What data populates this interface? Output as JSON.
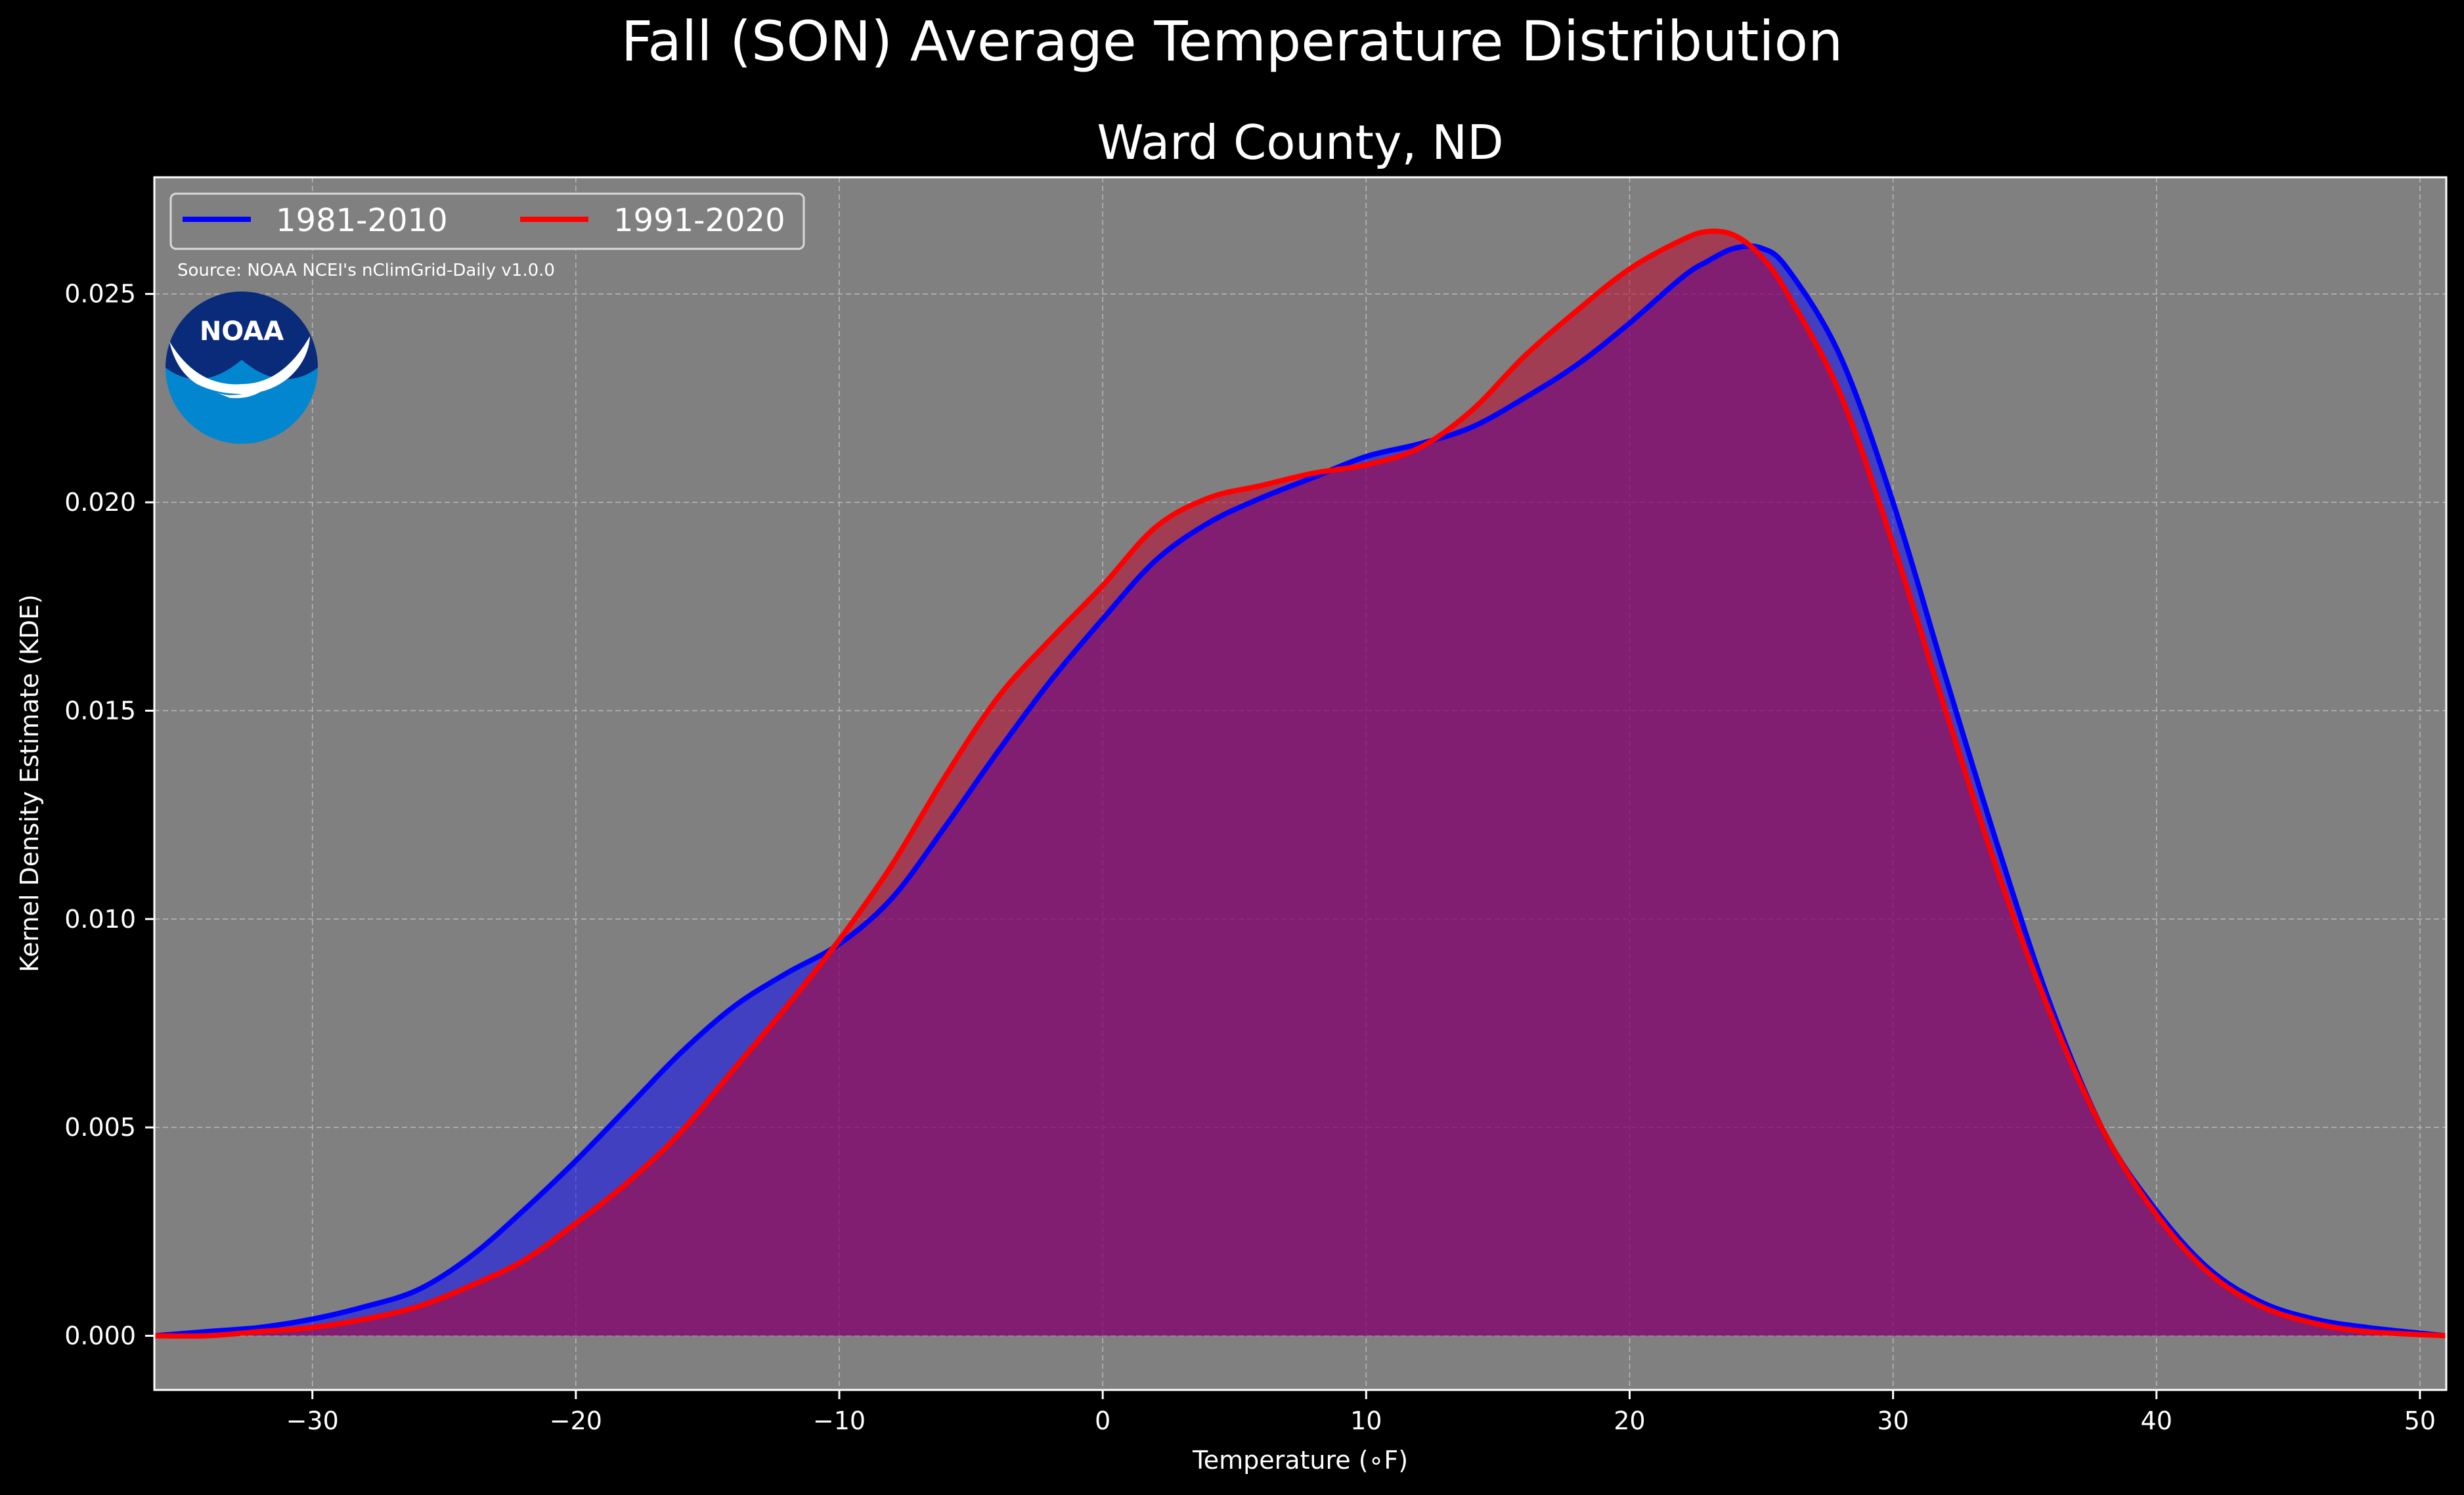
{
  "chart_data": {
    "type": "area",
    "suptitle": "Fall (SON) Average Temperature Distribution",
    "title": "Ward County, ND",
    "xlabel": "Temperature (∘F)",
    "ylabel": "Kernel Density Estimate (KDE)",
    "xlim": [
      -36,
      51
    ],
    "ylim": [
      -0.0013,
      0.0278
    ],
    "xticks": [
      -30,
      -20,
      -10,
      0,
      10,
      20,
      30,
      40,
      50
    ],
    "xtick_labels": [
      "−30",
      "−20",
      "−10",
      "0",
      "10",
      "20",
      "30",
      "40",
      "50"
    ],
    "yticks": [
      0,
      0.005,
      0.01,
      0.015,
      0.02,
      0.025
    ],
    "ytick_labels": [
      "0.000",
      "0.005",
      "0.010",
      "0.015",
      "0.020",
      "0.025"
    ],
    "grid": true,
    "legend_position": "top-left",
    "source": "Source: NOAA NCEI's nClimGrid-Daily v1.0.0",
    "logo_text": "NOAA",
    "colors": {
      "background": "#000000",
      "plot_background": "#808080",
      "series_1": "#0000ff",
      "series_2": "#ff0000",
      "overlap": "#9e1d5e"
    },
    "series": [
      {
        "name": "1981-2010",
        "color": "#0000ff",
        "x": [
          -36,
          -34,
          -32,
          -30,
          -28,
          -26,
          -24,
          -22,
          -20,
          -18,
          -16,
          -14,
          -12,
          -10,
          -8,
          -6,
          -4,
          -2,
          0,
          2,
          4,
          6,
          8,
          10,
          12,
          14,
          16,
          18,
          20,
          22,
          23,
          24,
          25,
          26,
          28,
          30,
          32,
          34,
          36,
          38,
          40,
          42,
          44,
          46,
          48,
          51
        ],
        "y": [
          0.0,
          0.0001,
          0.0002,
          0.0004,
          0.0007,
          0.0011,
          0.0019,
          0.003,
          0.0042,
          0.0055,
          0.0068,
          0.0079,
          0.0087,
          0.0094,
          0.0105,
          0.0122,
          0.014,
          0.0157,
          0.0172,
          0.0186,
          0.0195,
          0.0201,
          0.0206,
          0.0211,
          0.0214,
          0.0218,
          0.0225,
          0.0233,
          0.0243,
          0.0254,
          0.0258,
          0.0261,
          0.0261,
          0.0256,
          0.0235,
          0.02,
          0.0158,
          0.0117,
          0.0079,
          0.0049,
          0.003,
          0.0016,
          0.0008,
          0.0004,
          0.0002,
          0.0
        ]
      },
      {
        "name": "1991-2020",
        "color": "#ff0000",
        "x": [
          -36,
          -34,
          -32,
          -30,
          -28,
          -26,
          -24,
          -22,
          -20,
          -18,
          -16,
          -14,
          -12,
          -10,
          -8,
          -6,
          -4,
          -2,
          0,
          2,
          4,
          6,
          8,
          10,
          12,
          14,
          16,
          18,
          20,
          22,
          23,
          24,
          25,
          26,
          28,
          30,
          32,
          34,
          36,
          38,
          40,
          42,
          44,
          46,
          48,
          51
        ],
        "y": [
          0.0,
          0.0,
          0.0001,
          0.0002,
          0.0004,
          0.0007,
          0.0012,
          0.0018,
          0.0027,
          0.0037,
          0.0049,
          0.0064,
          0.0079,
          0.0095,
          0.0113,
          0.0134,
          0.0153,
          0.0167,
          0.018,
          0.0194,
          0.0201,
          0.0204,
          0.0207,
          0.0209,
          0.0213,
          0.0222,
          0.0235,
          0.0246,
          0.0256,
          0.0263,
          0.0265,
          0.0264,
          0.0259,
          0.025,
          0.0226,
          0.019,
          0.015,
          0.0111,
          0.0077,
          0.0049,
          0.0029,
          0.0015,
          0.0007,
          0.0003,
          0.0001,
          0.0
        ]
      }
    ]
  }
}
